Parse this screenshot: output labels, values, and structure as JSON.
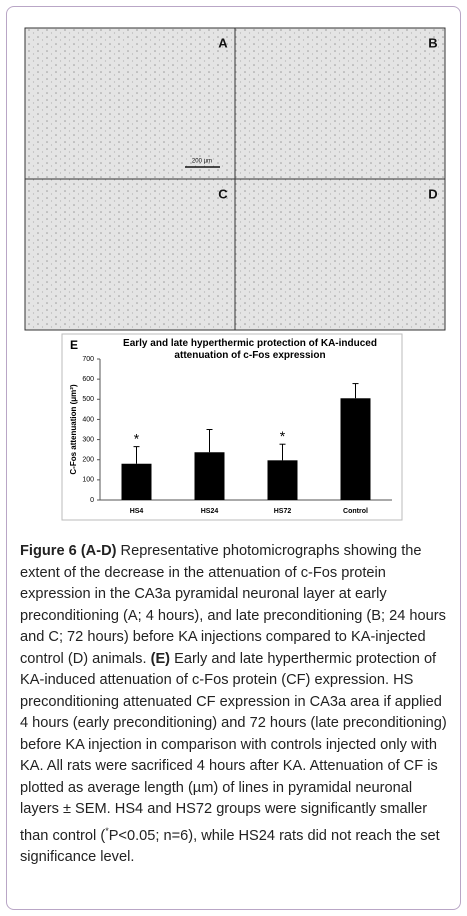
{
  "panels": [
    {
      "label": "A",
      "scale_bar": "200 µm"
    },
    {
      "label": "B"
    },
    {
      "label": "C"
    },
    {
      "label": "D"
    }
  ],
  "chart_data": {
    "type": "bar",
    "panel_label": "E",
    "title": "Early and late hyperthermic protection of KA-induced attenuation of c-Fos expression",
    "y_label": "C-Fos attenuation (μm²)",
    "categories": [
      "HS4",
      "HS24",
      "HS72",
      "Control"
    ],
    "values": [
      180,
      237,
      197,
      505
    ],
    "errors": [
      85,
      113,
      80,
      73
    ],
    "significance": [
      "*",
      null,
      "*",
      null
    ],
    "color": "#000000",
    "ylim": [
      0,
      700
    ],
    "yticks": [
      0,
      100,
      200,
      300,
      400,
      500,
      600,
      700
    ]
  },
  "caption": [
    "Figure 6 (A-D)",
    " Representative photomicrographs showing the extent of the decrease in the attenuation of c-Fos protein expression in the CA3a pyramidal neuronal layer at early preconditioning (A; 4 hours), and late preconditioning (B; 24 hours and C; 72 hours) before KA injections compared to KA-injected control (D) animals. ",
    "(E)",
    " Early and late hyperthermic protection of KA-induced attenuation of c-Fos protein (CF) expression. HS preconditioning attenuated CF expression in CA3a area if applied 4 hours (early preconditioning) and 72 hours (late preconditioning) before KA injection in comparison with controls injected only with KA. All rats were sacrificed 4 hours after KA. Attenuation of CF is plotted as average length (µm) of lines in pyramidal neuronal layers ± SEM. HS4 and HS72 groups were significantly smaller than control (",
    "*",
    "P<0.05; n=6), while HS24 rats did not reach the set significance level."
  ]
}
